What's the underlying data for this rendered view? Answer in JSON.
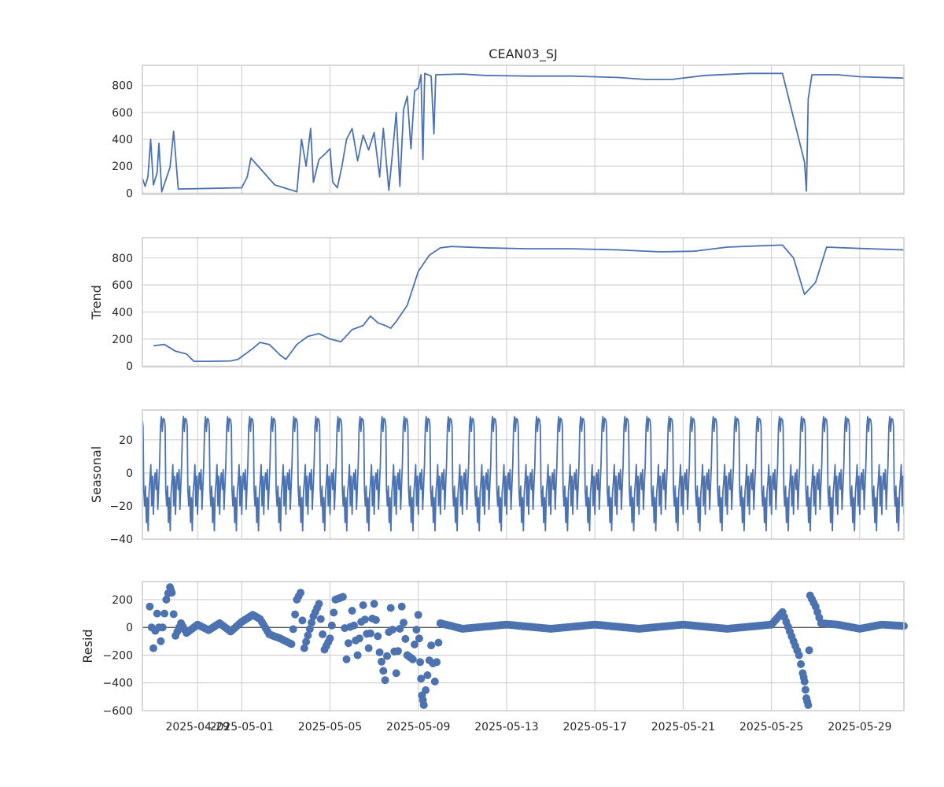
{
  "colors": {
    "series": "#4c72b0",
    "grid": "#cfcfcf",
    "frame": "#cccccc",
    "text": "#262626"
  },
  "chart_data": [
    {
      "type": "line",
      "title": "CEAN03_SJ",
      "ylabel": "",
      "ylim": [
        -10,
        950
      ],
      "yticks": [
        0,
        200,
        400,
        600,
        800
      ],
      "grid": true,
      "x_range": [
        "2025-04-26 12:00",
        "2025-05-31"
      ],
      "points": [
        [
          "2025-04-26 12:00",
          110
        ],
        [
          "2025-04-26 15:00",
          50
        ],
        [
          "2025-04-26 18:00",
          120
        ],
        [
          "2025-04-26 21:00",
          400
        ],
        [
          "2025-04-27 00:00",
          60
        ],
        [
          "2025-04-27 04:00",
          150
        ],
        [
          "2025-04-27 06:00",
          370
        ],
        [
          "2025-04-27 09:00",
          10
        ],
        [
          "2025-04-27 18:00",
          190
        ],
        [
          "2025-04-27 20:00",
          320
        ],
        [
          "2025-04-27 22:00",
          460
        ],
        [
          "2025-04-28 03:00",
          30
        ],
        [
          "2025-05-01 00:00",
          40
        ],
        [
          "2025-05-01 06:00",
          120
        ],
        [
          "2025-05-01 10:00",
          260
        ],
        [
          "2025-05-02 12:00",
          60
        ],
        [
          "2025-05-03 12:00",
          10
        ],
        [
          "2025-05-03 17:00",
          400
        ],
        [
          "2025-05-03 22:00",
          200
        ],
        [
          "2025-05-04 03:00",
          480
        ],
        [
          "2025-05-04 06:00",
          80
        ],
        [
          "2025-05-04 12:00",
          250
        ],
        [
          "2025-05-04 20:00",
          300
        ],
        [
          "2025-05-05 00:00",
          330
        ],
        [
          "2025-05-05 03:00",
          80
        ],
        [
          "2025-05-05 08:00",
          40
        ],
        [
          "2025-05-05 13:00",
          200
        ],
        [
          "2025-05-05 18:00",
          400
        ],
        [
          "2025-05-06 00:00",
          480
        ],
        [
          "2025-05-06 06:00",
          240
        ],
        [
          "2025-05-06 12:00",
          430
        ],
        [
          "2025-05-06 18:00",
          320
        ],
        [
          "2025-05-07 00:00",
          450
        ],
        [
          "2025-05-07 06:00",
          120
        ],
        [
          "2025-05-07 10:00",
          480
        ],
        [
          "2025-05-07 16:00",
          20
        ],
        [
          "2025-05-07 20:00",
          300
        ],
        [
          "2025-05-08 00:00",
          600
        ],
        [
          "2025-05-08 04:00",
          50
        ],
        [
          "2025-05-08 08:00",
          620
        ],
        [
          "2025-05-08 12:00",
          720
        ],
        [
          "2025-05-08 16:00",
          330
        ],
        [
          "2025-05-08 20:00",
          760
        ],
        [
          "2025-05-09 00:00",
          780
        ],
        [
          "2025-05-09 03:00",
          880
        ],
        [
          "2025-05-09 05:00",
          250
        ],
        [
          "2025-05-09 07:00",
          890
        ],
        [
          "2025-05-09 14:00",
          870
        ],
        [
          "2025-05-09 17:00",
          440
        ],
        [
          "2025-05-09 19:00",
          880
        ],
        [
          "2025-05-11 00:00",
          885
        ],
        [
          "2025-05-12 00:00",
          875
        ],
        [
          "2025-05-14 00:00",
          870
        ],
        [
          "2025-05-16 00:00",
          870
        ],
        [
          "2025-05-18 00:00",
          860
        ],
        [
          "2025-05-19 06:00",
          845
        ],
        [
          "2025-05-20 12:00",
          845
        ],
        [
          "2025-05-22 00:00",
          875
        ],
        [
          "2025-05-24 00:00",
          890
        ],
        [
          "2025-05-25 12:00",
          890
        ],
        [
          "2025-05-26 12:00",
          230
        ],
        [
          "2025-05-26 14:00",
          15
        ],
        [
          "2025-05-26 16:00",
          700
        ],
        [
          "2025-05-26 20:00",
          880
        ],
        [
          "2025-05-28 00:00",
          880
        ],
        [
          "2025-05-29 00:00",
          865
        ],
        [
          "2025-05-31 00:00",
          855
        ]
      ]
    },
    {
      "type": "line",
      "title": "",
      "ylabel": "Trend",
      "ylim": [
        -5,
        950
      ],
      "yticks": [
        0,
        200,
        400,
        600,
        800
      ],
      "grid": true,
      "x_range": [
        "2025-04-26 12:00",
        "2025-05-31"
      ],
      "points": [
        [
          "2025-04-27 00:00",
          150
        ],
        [
          "2025-04-27 12:00",
          160
        ],
        [
          "2025-04-28 00:00",
          110
        ],
        [
          "2025-04-28 12:00",
          90
        ],
        [
          "2025-04-28 20:00",
          35
        ],
        [
          "2025-04-29 12:00",
          35
        ],
        [
          "2025-04-30 12:00",
          38
        ],
        [
          "2025-04-30 20:00",
          50
        ],
        [
          "2025-05-01 12:00",
          130
        ],
        [
          "2025-05-01 20:00",
          175
        ],
        [
          "2025-05-02 06:00",
          160
        ],
        [
          "2025-05-02 18:00",
          80
        ],
        [
          "2025-05-03 00:00",
          50
        ],
        [
          "2025-05-03 12:00",
          160
        ],
        [
          "2025-05-04 00:00",
          220
        ],
        [
          "2025-05-04 12:00",
          240
        ],
        [
          "2025-05-05 00:00",
          200
        ],
        [
          "2025-05-05 12:00",
          180
        ],
        [
          "2025-05-06 00:00",
          270
        ],
        [
          "2025-05-06 12:00",
          300
        ],
        [
          "2025-05-06 20:00",
          370
        ],
        [
          "2025-05-07 04:00",
          320
        ],
        [
          "2025-05-07 12:00",
          300
        ],
        [
          "2025-05-07 18:00",
          280
        ],
        [
          "2025-05-08 00:00",
          330
        ],
        [
          "2025-05-08 12:00",
          450
        ],
        [
          "2025-05-09 00:00",
          700
        ],
        [
          "2025-05-09 12:00",
          820
        ],
        [
          "2025-05-10 00:00",
          875
        ],
        [
          "2025-05-10 12:00",
          885
        ],
        [
          "2025-05-12 00:00",
          875
        ],
        [
          "2025-05-14 00:00",
          868
        ],
        [
          "2025-05-16 00:00",
          868
        ],
        [
          "2025-05-18 00:00",
          860
        ],
        [
          "2025-05-20 00:00",
          845
        ],
        [
          "2025-05-21 12:00",
          850
        ],
        [
          "2025-05-23 00:00",
          880
        ],
        [
          "2025-05-24 12:00",
          890
        ],
        [
          "2025-05-25 12:00",
          895
        ],
        [
          "2025-05-26 00:00",
          800
        ],
        [
          "2025-05-26 12:00",
          530
        ],
        [
          "2025-05-27 00:00",
          620
        ],
        [
          "2025-05-27 12:00",
          880
        ],
        [
          "2025-05-29 00:00",
          870
        ],
        [
          "2025-05-31 00:00",
          860
        ]
      ]
    },
    {
      "type": "line",
      "title": "",
      "ylabel": "Seasonal",
      "ylim": [
        -40,
        38
      ],
      "yticks": [
        -40,
        -20,
        0,
        20
      ],
      "grid": true,
      "x_range": [
        "2025-04-26 12:00",
        "2025-05-31"
      ],
      "period_days": 1,
      "cycle_profile": [
        [
          0.0,
          32
        ],
        [
          0.03,
          28
        ],
        [
          0.06,
          -10
        ],
        [
          0.1,
          -20
        ],
        [
          0.14,
          -8
        ],
        [
          0.18,
          -30
        ],
        [
          0.22,
          -15
        ],
        [
          0.26,
          -35
        ],
        [
          0.3,
          -12
        ],
        [
          0.34,
          -5
        ],
        [
          0.38,
          5
        ],
        [
          0.42,
          -20
        ],
        [
          0.46,
          -2
        ],
        [
          0.5,
          -25
        ],
        [
          0.54,
          -5
        ],
        [
          0.58,
          0
        ],
        [
          0.62,
          -10
        ],
        [
          0.66,
          2
        ],
        [
          0.7,
          -22
        ],
        [
          0.74,
          -8
        ],
        [
          0.78,
          5
        ],
        [
          0.82,
          28
        ],
        [
          0.86,
          34
        ],
        [
          0.9,
          25
        ],
        [
          0.94,
          33
        ],
        [
          1.0,
          32
        ]
      ]
    },
    {
      "type": "scatter",
      "title": "",
      "ylabel": "Resid",
      "ylim": [
        -600,
        330
      ],
      "yticks": [
        -600,
        -400,
        -200,
        0,
        200
      ],
      "grid": true,
      "x_range": [
        "2025-04-26 12:00",
        "2025-05-31"
      ],
      "xticks": [
        "2025-04-29",
        "2025-05-01",
        "2025-05-05",
        "2025-05-09",
        "2025-05-13",
        "2025-05-17",
        "2025-05-21",
        "2025-05-25",
        "2025-05-29"
      ],
      "points": [
        [
          "2025-04-26 20:00",
          150
        ],
        [
          "2025-04-27 00:00",
          -150
        ],
        [
          "2025-04-27 04:00",
          100
        ],
        [
          "2025-04-27 08:00",
          -100
        ],
        [
          "2025-04-27 14:00",
          200
        ],
        [
          "2025-04-27 18:00",
          290
        ],
        [
          "2025-04-27 20:00",
          250
        ],
        [
          "2025-04-28 00:00",
          -60
        ],
        [
          "2025-04-28 06:00",
          30
        ],
        [
          "2025-04-28 12:00",
          -40
        ],
        [
          "2025-04-29 00:00",
          20
        ],
        [
          "2025-04-29 12:00",
          -20
        ],
        [
          "2025-04-30 00:00",
          30
        ],
        [
          "2025-04-30 12:00",
          -30
        ],
        [
          "2025-05-01 00:00",
          40
        ],
        [
          "2025-05-01 12:00",
          90
        ],
        [
          "2025-05-01 20:00",
          60
        ],
        [
          "2025-05-02 06:00",
          -50
        ],
        [
          "2025-05-02 18:00",
          -80
        ],
        [
          "2025-05-03 06:00",
          -120
        ],
        [
          "2025-05-03 12:00",
          200
        ],
        [
          "2025-05-03 16:00",
          250
        ],
        [
          "2025-05-03 20:00",
          -150
        ],
        [
          "2025-05-04 06:00",
          80
        ],
        [
          "2025-05-04 12:00",
          170
        ],
        [
          "2025-05-04 18:00",
          -160
        ],
        [
          "2025-05-05 00:00",
          -80
        ],
        [
          "2025-05-05 06:00",
          200
        ],
        [
          "2025-05-05 14:00",
          220
        ],
        [
          "2025-05-05 18:00",
          -230
        ],
        [
          "2025-05-06 00:00",
          120
        ],
        [
          "2025-05-06 06:00",
          -200
        ],
        [
          "2025-05-06 12:00",
          160
        ],
        [
          "2025-05-06 18:00",
          -150
        ],
        [
          "2025-05-07 00:00",
          170
        ],
        [
          "2025-05-07 06:00",
          -180
        ],
        [
          "2025-05-07 12:00",
          -380
        ],
        [
          "2025-05-07 18:00",
          140
        ],
        [
          "2025-05-08 00:00",
          -330
        ],
        [
          "2025-05-08 06:00",
          150
        ],
        [
          "2025-05-08 12:00",
          -200
        ],
        [
          "2025-05-08 18:00",
          -230
        ],
        [
          "2025-05-09 00:00",
          90
        ],
        [
          "2025-05-09 02:00",
          -250
        ],
        [
          "2025-05-09 04:00",
          -490
        ],
        [
          "2025-05-09 06:00",
          -560
        ],
        [
          "2025-05-09 14:00",
          -130
        ],
        [
          "2025-05-09 18:00",
          -390
        ],
        [
          "2025-05-10 00:00",
          30
        ],
        [
          "2025-05-11 00:00",
          -10
        ],
        [
          "2025-05-13 00:00",
          20
        ],
        [
          "2025-05-15 00:00",
          -10
        ],
        [
          "2025-05-17 00:00",
          20
        ],
        [
          "2025-05-19 00:00",
          -10
        ],
        [
          "2025-05-21 00:00",
          20
        ],
        [
          "2025-05-23 00:00",
          -10
        ],
        [
          "2025-05-25 00:00",
          20
        ],
        [
          "2025-05-25 12:00",
          110
        ],
        [
          "2025-05-26 00:00",
          -100
        ],
        [
          "2025-05-26 06:00",
          -200
        ],
        [
          "2025-05-26 10:00",
          -330
        ],
        [
          "2025-05-26 12:00",
          -390
        ],
        [
          "2025-05-26 14:00",
          -510
        ],
        [
          "2025-05-26 16:00",
          -560
        ],
        [
          "2025-05-26 18:00",
          230
        ],
        [
          "2025-05-27 00:00",
          150
        ],
        [
          "2025-05-27 06:00",
          30
        ],
        [
          "2025-05-28 00:00",
          20
        ],
        [
          "2025-05-29 00:00",
          -10
        ],
        [
          "2025-05-30 00:00",
          20
        ],
        [
          "2025-05-31 00:00",
          10
        ]
      ]
    }
  ]
}
